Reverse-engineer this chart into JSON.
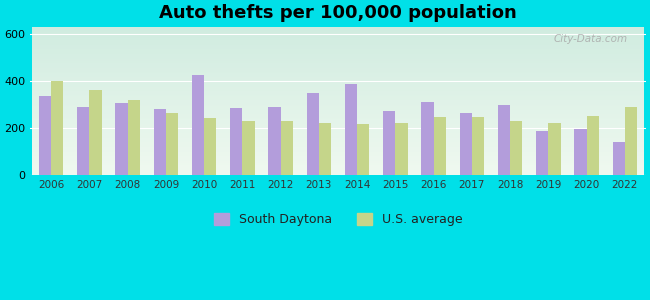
{
  "title": "Auto thefts per 100,000 population",
  "years": [
    2006,
    2007,
    2008,
    2009,
    2010,
    2011,
    2012,
    2013,
    2014,
    2015,
    2016,
    2017,
    2018,
    2019,
    2020,
    2022
  ],
  "south_daytona": [
    335,
    290,
    305,
    280,
    425,
    285,
    290,
    348,
    385,
    270,
    310,
    265,
    295,
    185,
    195,
    140
  ],
  "us_average": [
    400,
    360,
    320,
    265,
    240,
    230,
    230,
    220,
    215,
    220,
    245,
    245,
    230,
    220,
    250,
    290
  ],
  "south_daytona_color": "#b39ddb",
  "us_average_color": "#c5d58a",
  "bg_top_color": "#d0ece0",
  "bg_bottom_color": "#f0f9f0",
  "outer_bg": "#00e0e8",
  "ylim": [
    0,
    630
  ],
  "yticks": [
    0,
    200,
    400,
    600
  ],
  "bar_width": 0.32,
  "legend_south_daytona": "South Daytona",
  "legend_us_average": "U.S. average",
  "watermark": "City-Data.com"
}
